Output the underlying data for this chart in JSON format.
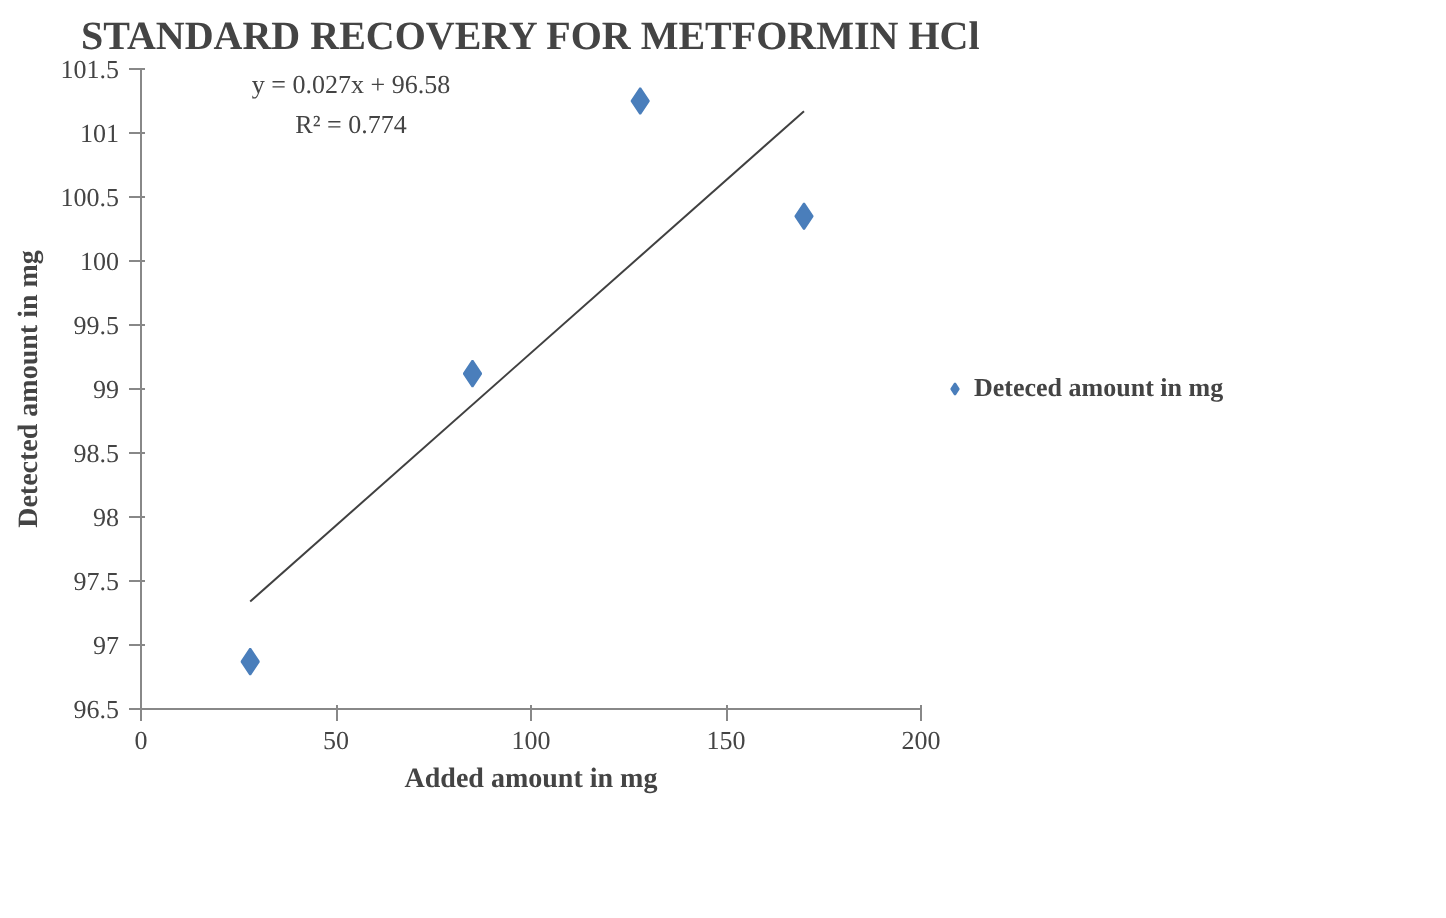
{
  "chart_data": {
    "type": "scatter",
    "title": "STANDARD RECOVERY FOR METFORMIN HCl",
    "xlabel": "Added amount in mg",
    "ylabel": "Detected amount in mg",
    "x": [
      28,
      85,
      128,
      170
    ],
    "series": [
      {
        "name": "Deteced amount in mg",
        "color": "#4a7ebb",
        "values": [
          96.87,
          99.12,
          101.25,
          100.35
        ],
        "marker": "diamond"
      },
      {
        "type": "line",
        "color": "#404040",
        "x": [
          28,
          170
        ],
        "values": [
          97.34,
          101.17
        ]
      }
    ],
    "annotations": [
      "y = 0.027x + 96.58",
      "R² = 0.774"
    ],
    "xlim": [
      0,
      200
    ],
    "xticks": [
      0,
      50,
      100,
      150,
      200
    ],
    "ylim": [
      96.5,
      101.5
    ],
    "yticks": [
      96.5,
      97,
      97.5,
      98,
      98.5,
      99,
      99.5,
      100,
      100.5,
      101,
      101.5
    ],
    "grid": false,
    "legend": "right"
  }
}
